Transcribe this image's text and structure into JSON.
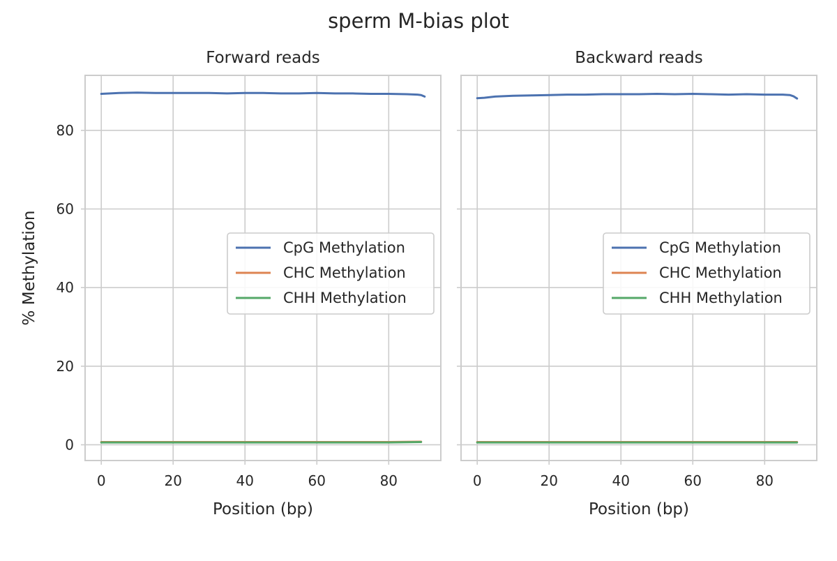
{
  "figure": {
    "title": "sperm M-bias plot"
  },
  "chart_data": [
    {
      "type": "line",
      "title": "Forward reads",
      "xlabel": "Position (bp)",
      "ylabel": "% Methylation",
      "xlim": [
        -4.5,
        94.5
      ],
      "ylim": [
        -4,
        94
      ],
      "xticks": [
        0,
        20,
        40,
        60,
        80
      ],
      "yticks": [
        0,
        20,
        40,
        60,
        80
      ],
      "grid": true,
      "legend_position": "center-right",
      "series": [
        {
          "name": "CpG Methylation",
          "color": "#4c72b0",
          "x": [
            0,
            5,
            10,
            15,
            20,
            25,
            30,
            35,
            40,
            45,
            50,
            55,
            60,
            65,
            70,
            75,
            80,
            85,
            88,
            89,
            90
          ],
          "y": [
            89.3,
            89.5,
            89.6,
            89.5,
            89.5,
            89.5,
            89.5,
            89.4,
            89.5,
            89.5,
            89.4,
            89.4,
            89.5,
            89.4,
            89.4,
            89.3,
            89.3,
            89.2,
            89.1,
            89.0,
            88.6
          ]
        },
        {
          "name": "CHC Methylation",
          "color": "#dd8452",
          "x": [
            0,
            10,
            20,
            30,
            40,
            50,
            60,
            70,
            80,
            89
          ],
          "y": [
            0.7,
            0.7,
            0.7,
            0.7,
            0.7,
            0.7,
            0.7,
            0.7,
            0.7,
            0.8
          ]
        },
        {
          "name": "CHH Methylation",
          "color": "#55a868",
          "x": [
            0,
            10,
            20,
            30,
            40,
            50,
            60,
            70,
            80,
            89
          ],
          "y": [
            0.6,
            0.6,
            0.6,
            0.6,
            0.6,
            0.6,
            0.6,
            0.6,
            0.6,
            0.7
          ]
        }
      ]
    },
    {
      "type": "line",
      "title": "Backward reads",
      "xlabel": "Position (bp)",
      "ylabel": "",
      "xlim": [
        -4.5,
        94.5
      ],
      "ylim": [
        -4,
        94
      ],
      "xticks": [
        0,
        20,
        40,
        60,
        80
      ],
      "yticks": [
        0,
        20,
        40,
        60,
        80
      ],
      "grid": true,
      "legend_position": "center-right",
      "series": [
        {
          "name": "CpG Methylation",
          "color": "#4c72b0",
          "x": [
            0,
            2,
            5,
            10,
            15,
            20,
            25,
            30,
            35,
            40,
            45,
            50,
            55,
            60,
            65,
            70,
            75,
            80,
            85,
            87,
            88,
            89
          ],
          "y": [
            88.2,
            88.3,
            88.6,
            88.8,
            88.9,
            89.0,
            89.1,
            89.1,
            89.2,
            89.2,
            89.2,
            89.3,
            89.2,
            89.3,
            89.2,
            89.1,
            89.2,
            89.1,
            89.1,
            89.0,
            88.7,
            88.1
          ]
        },
        {
          "name": "CHC Methylation",
          "color": "#dd8452",
          "x": [
            0,
            10,
            20,
            30,
            40,
            50,
            60,
            70,
            80,
            89
          ],
          "y": [
            0.7,
            0.7,
            0.7,
            0.7,
            0.7,
            0.7,
            0.7,
            0.7,
            0.7,
            0.7
          ]
        },
        {
          "name": "CHH Methylation",
          "color": "#55a868",
          "x": [
            0,
            10,
            20,
            30,
            40,
            50,
            60,
            70,
            80,
            89
          ],
          "y": [
            0.6,
            0.6,
            0.6,
            0.6,
            0.6,
            0.6,
            0.6,
            0.6,
            0.6,
            0.6
          ]
        }
      ]
    }
  ]
}
